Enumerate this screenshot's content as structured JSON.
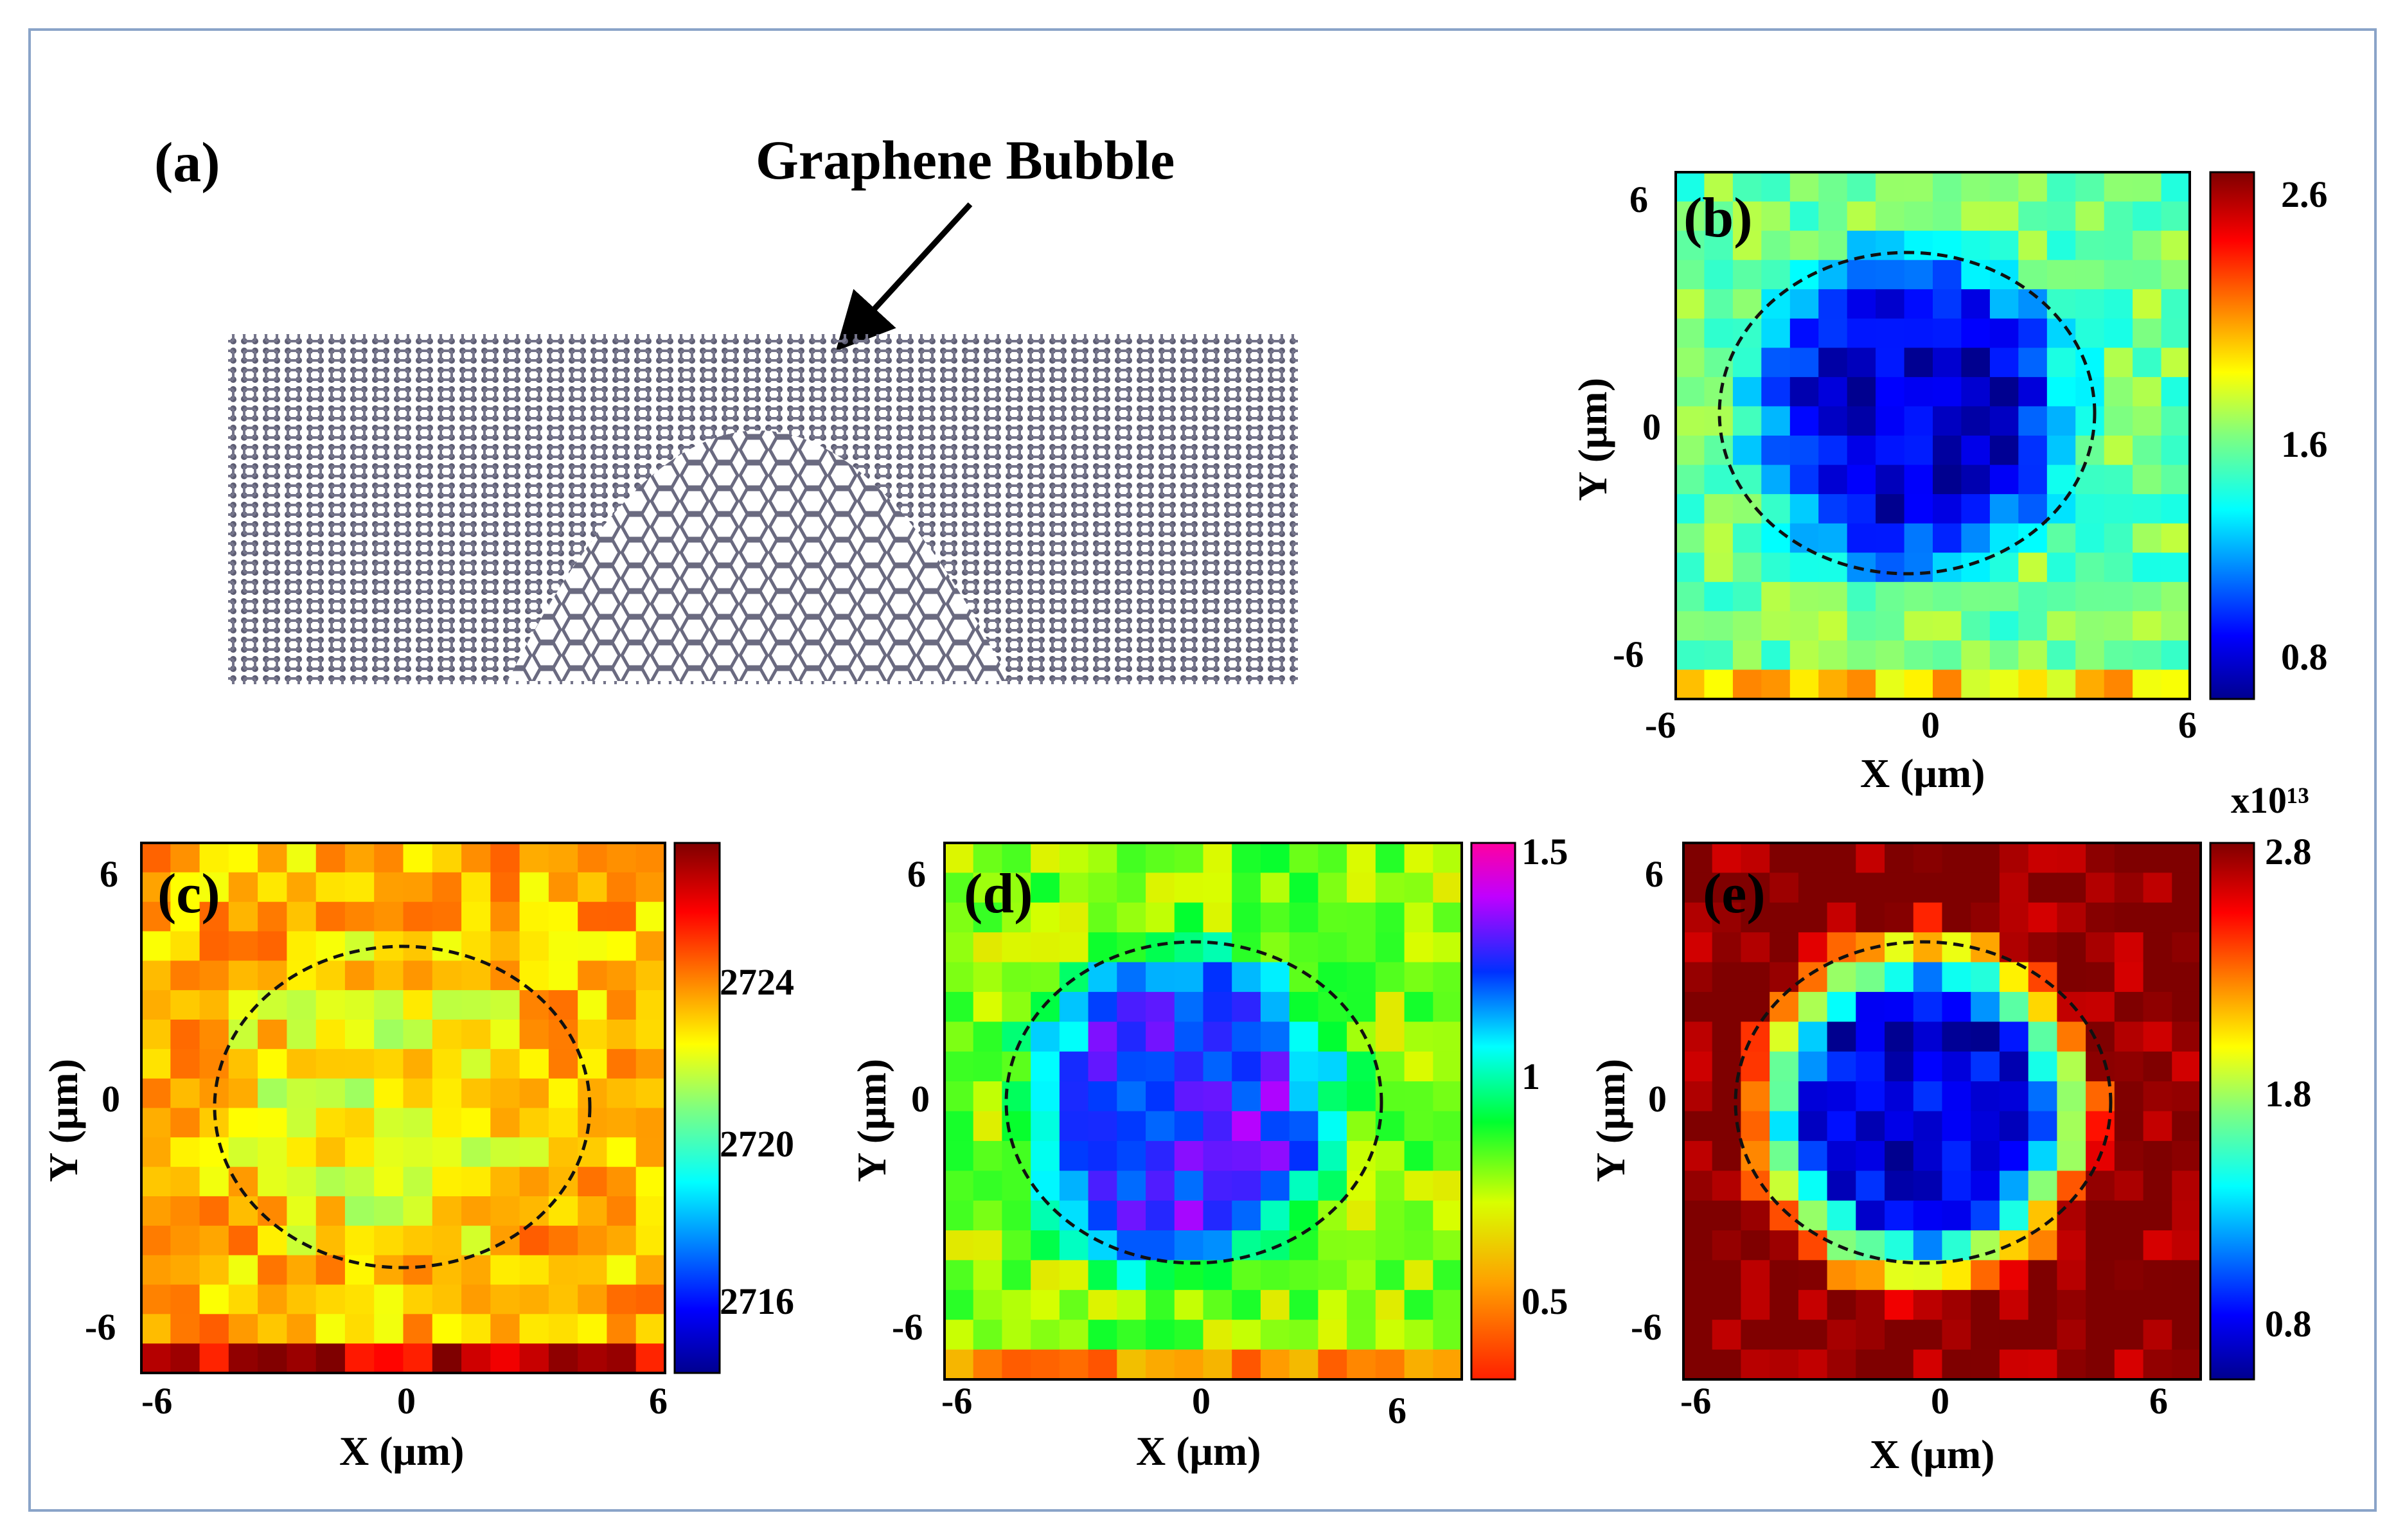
{
  "figure": {
    "panel_a": {
      "label": "(a)",
      "callout": "Graphene Bubble"
    },
    "panels": {
      "b": {
        "label": "(b)",
        "xlabel": "X (μm)",
        "ylabel": "Y (μm)",
        "xticks": [
          "-6",
          "0",
          "6"
        ],
        "yticks": [
          "6",
          "0",
          "-6"
        ],
        "colorbar_ticks": [
          "2.6",
          "1.6",
          "0.8"
        ],
        "colorbar_exponent": ""
      },
      "c": {
        "label": "(c)",
        "xlabel": "X (μm)",
        "ylabel": "Y (μm)",
        "xticks": [
          "-6",
          "0",
          "6"
        ],
        "yticks": [
          "6",
          "0",
          "-6"
        ],
        "colorbar_ticks": [
          "2724",
          "2720",
          "2716"
        ],
        "colorbar_exponent": ""
      },
      "d": {
        "label": "(d)",
        "xlabel": "X (μm)",
        "ylabel": "Y (μm)",
        "xticks": [
          "-6",
          "0",
          "6"
        ],
        "yticks": [
          "6",
          "0",
          "-6"
        ],
        "colorbar_ticks": [
          "1.5",
          "1",
          "0.5"
        ],
        "colorbar_exponent": ""
      },
      "e": {
        "label": "(e)",
        "xlabel": "X (μm)",
        "ylabel": "Y (μm)",
        "xticks": [
          "-6",
          "0",
          "6"
        ],
        "yticks": [
          "6",
          "0",
          "-6"
        ],
        "colorbar_ticks": [
          "2.8",
          "1.8",
          "0.8"
        ],
        "colorbar_exponent": "x10¹³"
      }
    }
  },
  "chart_data": [
    {
      "type": "heatmap",
      "panel": "b",
      "title": "",
      "xlabel": "X (μm)",
      "ylabel": "Y (μm)",
      "xlim": [
        -6,
        6
      ],
      "ylim": [
        -6,
        6
      ],
      "colorbar": {
        "min": 0.6,
        "max": 2.7,
        "ticks": [
          2.6,
          1.6,
          0.8
        ],
        "colormap": "jet"
      },
      "annotation": "dashed circle marking bubble",
      "field": {
        "background": 1.6,
        "center_x": -0.5,
        "center_y": 0.5,
        "radius": 4.5,
        "inside": 0.75,
        "low_band_y": -5,
        "low_band_value": 2.0
      }
    },
    {
      "type": "heatmap",
      "panel": "c",
      "title": "",
      "xlabel": "X (μm)",
      "ylabel": "Y (μm)",
      "xlim": [
        -6,
        6
      ],
      "ylim": [
        -6,
        6
      ],
      "colorbar": {
        "min": 2714,
        "max": 2727,
        "ticks": [
          2724,
          2720,
          2716
        ],
        "colormap": "jet"
      },
      "annotation": "dashed circle marking bubble",
      "field": {
        "background": 2723,
        "center_x": -0.5,
        "center_y": 0.0,
        "radius": 4.5,
        "inside": 2722,
        "low_band_y": -5,
        "low_band_value": 2726
      }
    },
    {
      "type": "heatmap",
      "panel": "d",
      "title": "",
      "xlabel": "X (μm)",
      "ylabel": "Y (μm)",
      "xlim": [
        -6,
        6
      ],
      "ylim": [
        -6,
        6
      ],
      "colorbar": {
        "min": 0.3,
        "max": 1.6,
        "ticks": [
          1.5,
          1,
          0.5
        ],
        "colormap": "hsv"
      },
      "annotation": "dashed circle marking bubble",
      "field": {
        "background": 0.8,
        "center_x": -0.5,
        "center_y": 0.0,
        "radius": 4.5,
        "inside": 1.35,
        "low_band_y": -5,
        "low_band_value": 0.5
      }
    },
    {
      "type": "heatmap",
      "panel": "e",
      "title": "",
      "xlabel": "X (μm)",
      "ylabel": "Y (μm)",
      "xlim": [
        -6,
        6
      ],
      "ylim": [
        -6,
        6
      ],
      "colorbar": {
        "min": 0.4,
        "max": 2.9,
        "ticks": [
          2.8,
          1.8,
          0.8
        ],
        "colormap": "jet",
        "exponent": "x10¹³"
      },
      "annotation": "dashed circle marking bubble",
      "field": {
        "background": 2.9,
        "center_x": -0.5,
        "center_y": 0.0,
        "radius": 4.5,
        "inside": 0.6,
        "low_band_y": -5,
        "low_band_value": 2.9
      }
    }
  ]
}
